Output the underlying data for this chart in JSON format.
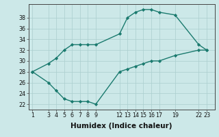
{
  "upper_x": [
    1,
    3,
    4,
    5,
    6,
    7,
    8,
    9,
    12,
    13,
    14,
    15,
    16,
    17,
    19,
    22,
    23
  ],
  "upper_y": [
    28,
    29.5,
    30.5,
    32,
    33,
    33,
    33,
    33,
    35,
    38,
    39,
    39.5,
    39.5,
    39,
    38.5,
    33,
    32
  ],
  "lower_x": [
    1,
    3,
    4,
    5,
    6,
    7,
    8,
    9,
    12,
    13,
    14,
    15,
    16,
    17,
    19,
    22,
    23
  ],
  "lower_y": [
    28,
    26,
    24.5,
    23,
    22.5,
    22.5,
    22.5,
    22,
    28,
    28.5,
    29,
    29.5,
    30,
    30,
    31,
    32,
    32
  ],
  "line_color": "#1a7a6e",
  "marker": "D",
  "marker_size": 2.2,
  "xlabel": "Humidex (Indice chaleur)",
  "xticks": [
    1,
    3,
    4,
    5,
    6,
    7,
    8,
    9,
    12,
    13,
    14,
    15,
    16,
    17,
    19,
    22,
    23
  ],
  "xtick_labels": [
    "1",
    "3",
    "4",
    "5",
    "6",
    "7",
    "8",
    "9",
    "12",
    "13",
    "14",
    "15",
    "16",
    "17",
    "19",
    "22",
    "23"
  ],
  "yticks": [
    22,
    24,
    26,
    28,
    30,
    32,
    34,
    36,
    38
  ],
  "ylim": [
    21.0,
    40.5
  ],
  "xlim": [
    0.5,
    24.0
  ],
  "bg_color": "#cce8e8",
  "grid_color": "#aacece",
  "tick_fontsize": 5.8,
  "xlabel_fontsize": 7.5,
  "linewidth": 1.0
}
